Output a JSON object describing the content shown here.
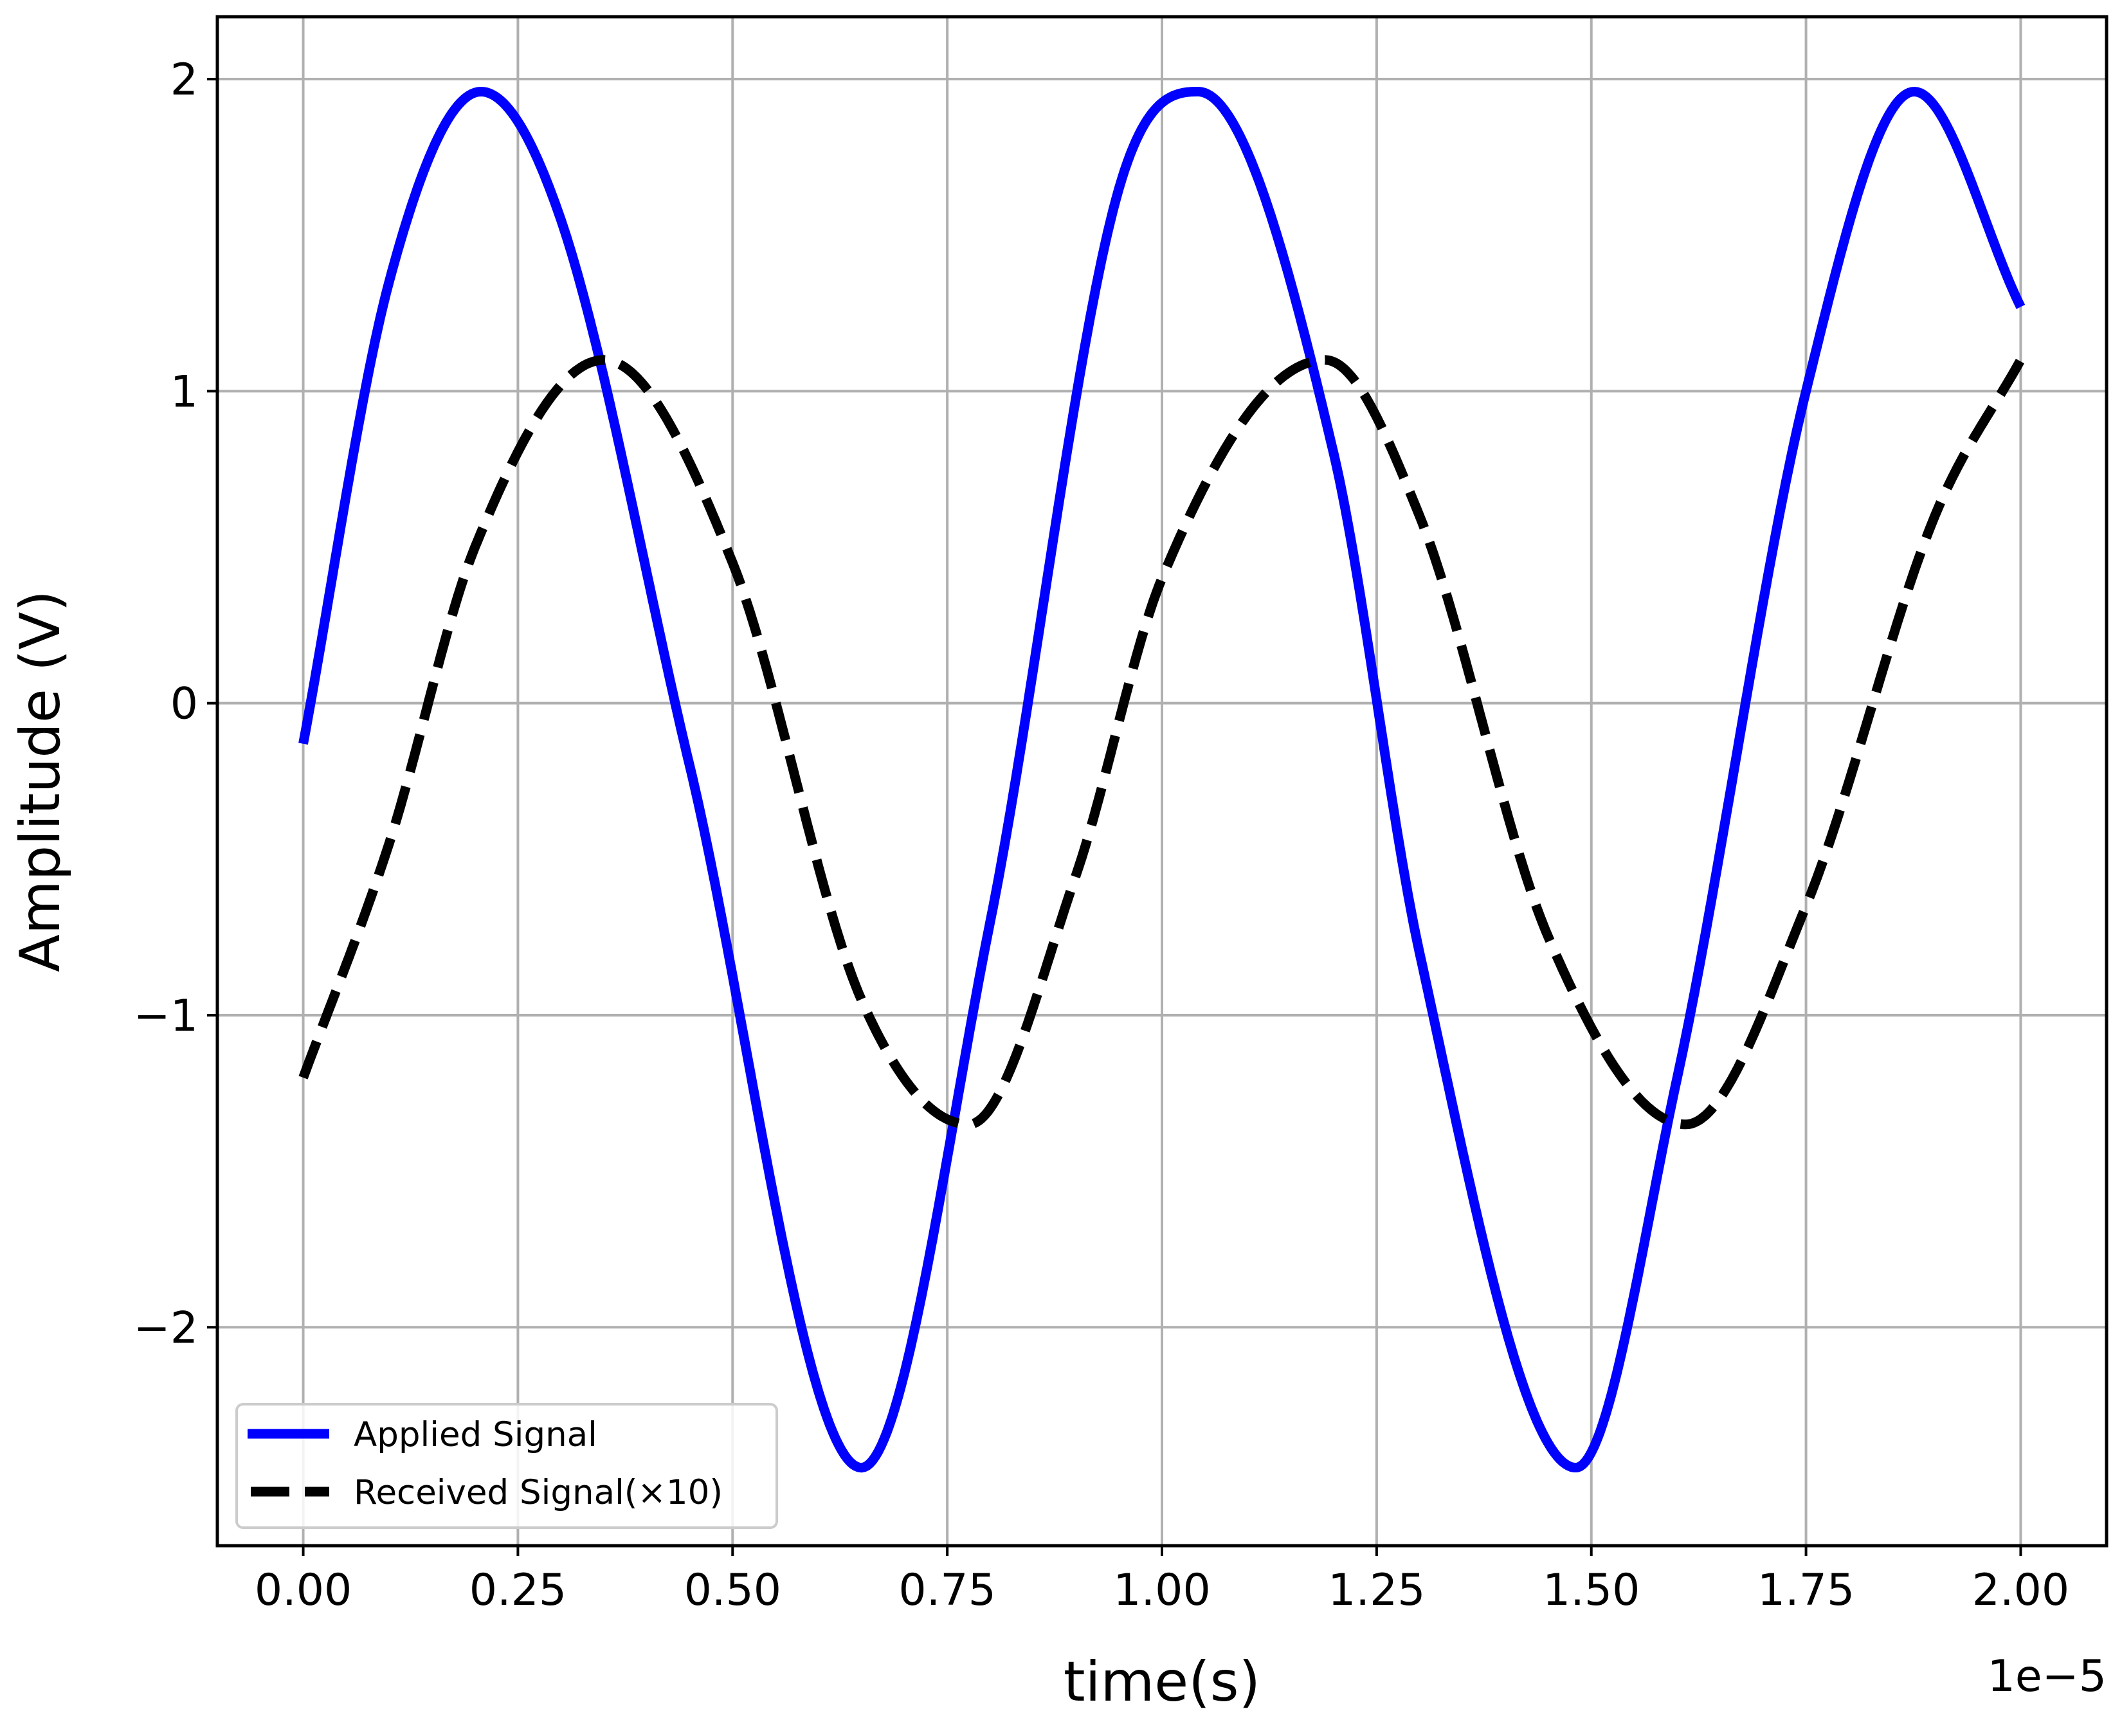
{
  "chart_data": {
    "type": "line",
    "title": "",
    "xlabel": "time(s)",
    "ylabel": "Amplitude (V)",
    "x_offset_label": "1e−5",
    "xlim": [
      -0.1,
      2.1
    ],
    "ylim": [
      -2.7,
      2.2
    ],
    "x_ticks": [
      0.0,
      0.25,
      0.5,
      0.75,
      1.0,
      1.25,
      1.5,
      1.75,
      2.0
    ],
    "x_tick_labels": [
      "0.00",
      "0.25",
      "0.50",
      "0.75",
      "1.00",
      "1.25",
      "1.50",
      "1.75",
      "2.00"
    ],
    "y_ticks": [
      2,
      1,
      0,
      -1,
      -2
    ],
    "y_tick_labels": [
      "2",
      "1",
      "0",
      "−1",
      "−2"
    ],
    "grid": true,
    "legend_position": "bottom-left",
    "series": [
      {
        "name": "Applied Signal",
        "color": "#0000ff",
        "style": "solid",
        "x": [
          0.0,
          0.1,
          0.207,
          0.3,
          0.45,
          0.65,
          0.8,
          0.95,
          1.042,
          1.2,
          1.3,
          1.482,
          1.6,
          1.75,
          1.876,
          2.0
        ],
        "y": [
          -0.13,
          1.35,
          1.96,
          1.55,
          -0.2,
          -2.45,
          -0.7,
          1.65,
          1.96,
          0.8,
          -0.8,
          -2.45,
          -1.2,
          1.0,
          1.96,
          1.27
        ]
      },
      {
        "name": "Received Signal(×10)",
        "color": "#000000",
        "style": "dashed",
        "x": [
          0.0,
          0.1,
          0.2,
          0.35,
          0.5,
          0.65,
          0.775,
          0.9,
          1.0,
          1.19,
          1.3,
          1.45,
          1.61,
          1.75,
          1.9,
          2.0
        ],
        "y": [
          -1.2,
          -0.45,
          0.5,
          1.1,
          0.45,
          -0.95,
          -1.35,
          -0.55,
          0.4,
          1.1,
          0.6,
          -0.75,
          -1.35,
          -0.65,
          0.6,
          1.1
        ]
      }
    ]
  }
}
